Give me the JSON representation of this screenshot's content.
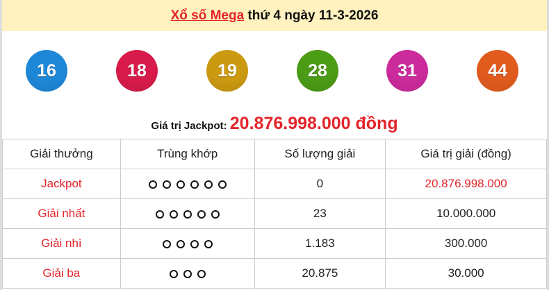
{
  "header": {
    "link": "Xổ số Mega",
    "rest": " thứ 4 ngày 11-3-2026"
  },
  "balls": [
    {
      "number": "16",
      "color": "#1e88d8"
    },
    {
      "number": "18",
      "color": "#d81b4a"
    },
    {
      "number": "19",
      "color": "#cc9a10"
    },
    {
      "number": "28",
      "color": "#4c9c16"
    },
    {
      "number": "31",
      "color": "#cc2b9c"
    },
    {
      "number": "44",
      "color": "#e25b1e"
    }
  ],
  "jackpot": {
    "label": "Giá trị Jackpot: ",
    "value": "20.876.998.000 đồng"
  },
  "table": {
    "headers": [
      "Giải thưởng",
      "Trùng khớp",
      "Số lượng giải",
      "Giá trị giải (đồng)"
    ],
    "rows": [
      {
        "prize": "Jackpot",
        "matches": 6,
        "count": "0",
        "value": "20.876.998.000",
        "value_red": true
      },
      {
        "prize": "Giải nhất",
        "matches": 5,
        "count": "23",
        "value": "10.000.000",
        "value_red": false
      },
      {
        "prize": "Giải nhì",
        "matches": 4,
        "count": "1.183",
        "value": "300.000",
        "value_red": false
      },
      {
        "prize": "Giải ba",
        "matches": 3,
        "count": "20.875",
        "value": "30.000",
        "value_red": false
      }
    ]
  }
}
